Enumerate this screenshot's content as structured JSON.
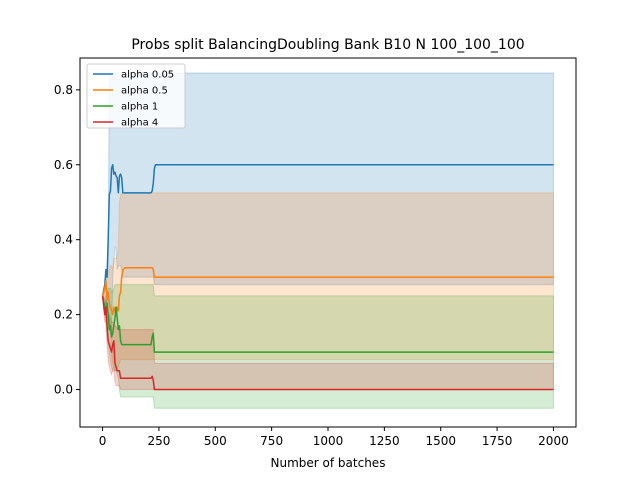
{
  "chart_data": {
    "type": "line",
    "title": "Probs split BalancingDoubling Bank B10 N 100_100_100",
    "xlabel": "Number of batches",
    "ylabel": "",
    "xlim": [
      -100,
      2100
    ],
    "ylim": [
      -0.1,
      0.885
    ],
    "xticks": [
      0,
      250,
      500,
      750,
      1000,
      1250,
      1500,
      1750,
      2000
    ],
    "yticks": [
      0.0,
      0.2,
      0.4,
      0.6,
      0.8
    ],
    "ytick_labels": [
      "0.0",
      "0.2",
      "0.4",
      "0.6",
      "0.8"
    ],
    "grid": false,
    "legend": "top-left",
    "series": [
      {
        "name": "alpha 0.05",
        "color": "#1f77b4",
        "x": [
          0,
          10,
          15,
          20,
          25,
          30,
          35,
          40,
          45,
          50,
          55,
          60,
          65,
          70,
          75,
          80,
          85,
          90,
          100,
          150,
          200,
          215,
          220,
          225,
          230,
          235,
          240,
          300,
          500,
          1000,
          1500,
          2000
        ],
        "y": [
          0.25,
          0.28,
          0.32,
          0.3,
          0.4,
          0.52,
          0.53,
          0.59,
          0.6,
          0.575,
          0.58,
          0.57,
          0.565,
          0.525,
          0.57,
          0.575,
          0.565,
          0.525,
          0.525,
          0.525,
          0.525,
          0.525,
          0.53,
          0.55,
          0.59,
          0.6,
          0.6,
          0.6,
          0.6,
          0.6,
          0.6,
          0.6
        ],
        "upper": [
          0.25,
          0.26,
          0.3,
          0.3,
          0.33,
          0.84,
          0.845,
          0.845,
          0.845,
          0.845,
          0.845,
          0.845,
          0.845,
          0.845,
          0.845,
          0.845,
          0.845,
          0.845,
          0.845,
          0.845,
          0.845,
          0.845,
          0.845,
          0.845,
          0.845,
          0.845,
          0.845,
          0.845,
          0.845,
          0.845,
          0.845,
          0.845
        ],
        "lower": [
          0.25,
          0.24,
          0.22,
          0.25,
          0.2,
          0.19,
          0.15,
          0.15,
          0.3,
          0.34,
          0.38,
          0.38,
          0.32,
          0.33,
          0.33,
          0.33,
          0.32,
          0.3,
          0.3,
          0.3,
          0.3,
          0.3,
          0.3,
          0.3,
          0.28,
          0.28,
          0.28,
          0.28,
          0.28,
          0.28,
          0.28,
          0.28
        ]
      },
      {
        "name": "alpha 0.5",
        "color": "#ff7f0e",
        "x": [
          0,
          10,
          15,
          20,
          25,
          30,
          35,
          40,
          45,
          50,
          55,
          60,
          65,
          70,
          75,
          80,
          85,
          90,
          100,
          150,
          200,
          215,
          220,
          225,
          230,
          235,
          240,
          300,
          500,
          1000,
          1500,
          2000
        ],
        "y": [
          0.25,
          0.27,
          0.29,
          0.24,
          0.26,
          0.23,
          0.22,
          0.21,
          0.2,
          0.22,
          0.21,
          0.2,
          0.22,
          0.21,
          0.25,
          0.26,
          0.3,
          0.32,
          0.325,
          0.325,
          0.325,
          0.325,
          0.325,
          0.32,
          0.3,
          0.3,
          0.3,
          0.3,
          0.3,
          0.3,
          0.3,
          0.3
        ],
        "upper": [
          0.25,
          0.26,
          0.3,
          0.3,
          0.31,
          0.32,
          0.33,
          0.33,
          0.32,
          0.35,
          0.35,
          0.35,
          0.36,
          0.37,
          0.5,
          0.52,
          0.525,
          0.525,
          0.525,
          0.525,
          0.525,
          0.525,
          0.525,
          0.525,
          0.525,
          0.525,
          0.525,
          0.525,
          0.525,
          0.525,
          0.525,
          0.525
        ],
        "lower": [
          0.25,
          0.23,
          0.2,
          0.18,
          0.17,
          0.16,
          0.15,
          0.1,
          0.07,
          0.06,
          0.05,
          0.05,
          0.06,
          0.06,
          0.07,
          0.08,
          0.08,
          0.08,
          0.08,
          0.08,
          0.08,
          0.08,
          0.08,
          0.08,
          0.08,
          0.08,
          0.08,
          0.08,
          0.08,
          0.08,
          0.08,
          0.08
        ]
      },
      {
        "name": "alpha 1",
        "color": "#2ca02c",
        "x": [
          0,
          10,
          15,
          20,
          25,
          30,
          35,
          40,
          45,
          50,
          55,
          60,
          65,
          70,
          75,
          80,
          85,
          90,
          100,
          150,
          200,
          215,
          220,
          225,
          230,
          235,
          240,
          300,
          500,
          1000,
          1500,
          2000
        ],
        "y": [
          0.25,
          0.22,
          0.2,
          0.23,
          0.2,
          0.16,
          0.17,
          0.14,
          0.15,
          0.17,
          0.19,
          0.22,
          0.19,
          0.16,
          0.17,
          0.13,
          0.12,
          0.12,
          0.12,
          0.12,
          0.12,
          0.12,
          0.14,
          0.15,
          0.1,
          0.1,
          0.1,
          0.1,
          0.1,
          0.1,
          0.1,
          0.1
        ],
        "upper": [
          0.25,
          0.24,
          0.25,
          0.26,
          0.27,
          0.27,
          0.27,
          0.26,
          0.26,
          0.27,
          0.28,
          0.28,
          0.28,
          0.28,
          0.28,
          0.28,
          0.28,
          0.28,
          0.28,
          0.28,
          0.28,
          0.28,
          0.28,
          0.28,
          0.25,
          0.25,
          0.25,
          0.25,
          0.25,
          0.25,
          0.25,
          0.25
        ],
        "lower": [
          0.25,
          0.2,
          0.18,
          0.15,
          0.12,
          0.1,
          0.08,
          0.06,
          0.05,
          0.05,
          0.05,
          0.05,
          0.04,
          0.03,
          0.0,
          -0.02,
          -0.02,
          -0.02,
          -0.02,
          -0.02,
          -0.02,
          -0.02,
          -0.02,
          -0.02,
          -0.05,
          -0.05,
          -0.05,
          -0.05,
          -0.05,
          -0.05,
          -0.05,
          -0.05
        ]
      },
      {
        "name": "alpha 4",
        "color": "#d62728",
        "x": [
          0,
          10,
          15,
          20,
          25,
          30,
          35,
          40,
          45,
          50,
          55,
          60,
          65,
          70,
          75,
          80,
          85,
          90,
          100,
          150,
          200,
          215,
          220,
          225,
          230,
          235,
          240,
          300,
          500,
          1000,
          1500,
          2000
        ],
        "y": [
          0.25,
          0.2,
          0.22,
          0.17,
          0.13,
          0.12,
          0.11,
          0.1,
          0.12,
          0.13,
          0.07,
          0.06,
          0.05,
          0.05,
          0.05,
          0.03,
          0.03,
          0.03,
          0.03,
          0.03,
          0.03,
          0.03,
          0.035,
          0.025,
          0.0,
          0.0,
          0.0,
          0.0,
          0.0,
          0.0,
          0.0,
          0.0
        ],
        "upper": [
          0.25,
          0.22,
          0.24,
          0.23,
          0.21,
          0.2,
          0.19,
          0.18,
          0.18,
          0.18,
          0.17,
          0.17,
          0.16,
          0.16,
          0.16,
          0.16,
          0.16,
          0.16,
          0.16,
          0.16,
          0.16,
          0.16,
          0.16,
          0.16,
          0.07,
          0.07,
          0.07,
          0.07,
          0.07,
          0.07,
          0.07,
          0.07
        ],
        "lower": [
          0.25,
          0.18,
          0.18,
          0.12,
          0.08,
          0.06,
          0.05,
          0.04,
          0.05,
          0.06,
          0.02,
          0.01,
          0.01,
          0.01,
          0.01,
          0.0,
          0.0,
          0.0,
          0.0,
          0.0,
          0.0,
          0.0,
          0.0,
          0.0,
          0.0,
          0.0,
          0.0,
          0.0,
          0.0,
          0.0,
          0.0,
          0.0
        ]
      }
    ]
  }
}
